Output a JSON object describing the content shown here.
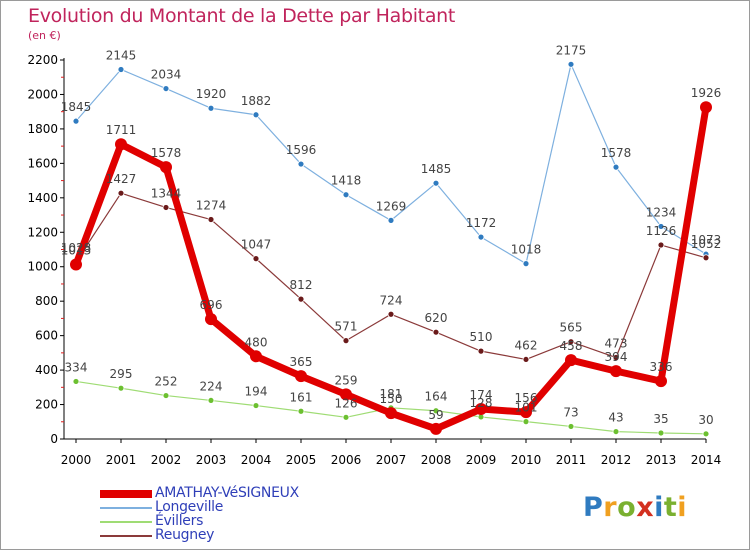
{
  "title": "Evolution du Montant de la Dette par Habitant",
  "unit": "(en €)",
  "logo": {
    "text": "Proxiti",
    "colors": [
      "#2f7bc0",
      "#f0a020",
      "#7ab030",
      "#d33020",
      "#2f7bc0",
      "#7ab030",
      "#f0a020"
    ]
  },
  "colors": {
    "title": "#c0245c",
    "legend_text": "#2f3fb8",
    "axis": "#000000",
    "label": "#333333"
  },
  "chart_data": {
    "type": "line",
    "title": "Evolution du Montant de la Dette par Habitant",
    "ylabel": "(en €)",
    "xlabel": "",
    "x": [
      "2000",
      "2001",
      "2002",
      "2003",
      "2004",
      "2005",
      "2006",
      "2007",
      "2008",
      "2009",
      "2010",
      "2011",
      "2012",
      "2013",
      "2014"
    ],
    "ylim": [
      0,
      2200
    ],
    "yticks": [
      0,
      200,
      400,
      600,
      800,
      1000,
      1200,
      1400,
      1600,
      1800,
      2000,
      2200
    ],
    "grid": false,
    "legend_position": "bottom-left",
    "series": [
      {
        "name": "AMATHAY-VéSIGNEUX",
        "color": "#e00000",
        "marker": "#e00000",
        "width": 7,
        "radius": 6,
        "values": [
          1013,
          1711,
          1578,
          696,
          480,
          365,
          259,
          150,
          59,
          174,
          156,
          458,
          394,
          336,
          1926
        ]
      },
      {
        "name": "Longeville",
        "color": "#7eb0df",
        "marker": "#2f7bc0",
        "width": 1.2,
        "radius": 3,
        "values": [
          1845,
          2145,
          2034,
          1920,
          1882,
          1596,
          1418,
          1269,
          1485,
          1172,
          1018,
          2175,
          1578,
          1234,
          1073
        ]
      },
      {
        "name": "Évillers",
        "color": "#9fdc74",
        "marker": "#6cc030",
        "width": 1.2,
        "radius": 3,
        "values": [
          334,
          295,
          252,
          224,
          194,
          161,
          126,
          181,
          164,
          128,
          101,
          73,
          43,
          35,
          30
        ]
      },
      {
        "name": "Reugney",
        "color": "#8b3a3a",
        "marker": "#6a1a1a",
        "width": 1.2,
        "radius": 3,
        "values": [
          1028,
          1427,
          1344,
          1274,
          1047,
          812,
          571,
          724,
          620,
          510,
          462,
          565,
          473,
          1126,
          1052
        ]
      }
    ]
  }
}
